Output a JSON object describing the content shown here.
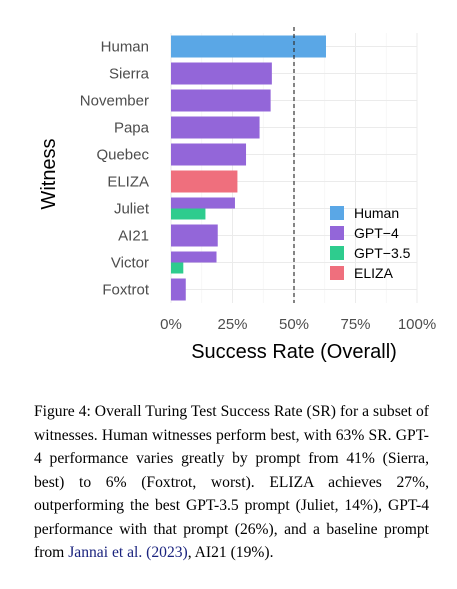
{
  "chart_data": {
    "type": "bar",
    "orientation": "horizontal",
    "xlabel": "Success Rate (Overall)",
    "ylabel": "Witness",
    "xlim": [
      0,
      1
    ],
    "xticks": [
      0,
      0.25,
      0.5,
      0.75,
      1.0
    ],
    "xtick_labels": [
      "0%",
      "25%",
      "50%",
      "75%",
      "100%"
    ],
    "reference_line": 0.5,
    "grid": true,
    "legend_position": "bottom-right",
    "categories": [
      "Human",
      "Sierra",
      "November",
      "Papa",
      "Quebec",
      "ELIZA",
      "Juliet",
      "AI21",
      "Victor",
      "Foxtrot"
    ],
    "bars": [
      {
        "witness": "Human",
        "group": "Human",
        "value": 0.63
      },
      {
        "witness": "Sierra",
        "group": "GPT-4",
        "value": 0.41
      },
      {
        "witness": "November",
        "group": "GPT-4",
        "value": 0.405
      },
      {
        "witness": "Papa",
        "group": "GPT-4",
        "value": 0.36
      },
      {
        "witness": "Quebec",
        "group": "GPT-4",
        "value": 0.305
      },
      {
        "witness": "ELIZA",
        "group": "ELIZA",
        "value": 0.27
      },
      {
        "witness": "Juliet",
        "group": "GPT-4",
        "value": 0.26
      },
      {
        "witness": "Juliet",
        "group": "GPT-3.5",
        "value": 0.14
      },
      {
        "witness": "AI21",
        "group": "GPT-4",
        "value": 0.19
      },
      {
        "witness": "Victor",
        "group": "GPT-4",
        "value": 0.185
      },
      {
        "witness": "Victor",
        "group": "GPT-3.5",
        "value": 0.05
      },
      {
        "witness": "Foxtrot",
        "group": "GPT-4",
        "value": 0.06
      }
    ],
    "legend": [
      {
        "name": "Human",
        "color": "#5aa7e6"
      },
      {
        "name": "GPT−4",
        "color": "#9366d9"
      },
      {
        "name": "GPT−3.5",
        "color": "#2ecc8e"
      },
      {
        "name": "ELIZA",
        "color": "#ef6f7d"
      }
    ]
  },
  "colors": {
    "Human": "#5aa7e6",
    "GPT-4": "#9366d9",
    "GPT-3.5": "#2ecc8e",
    "ELIZA": "#ef6f7d"
  },
  "caption": {
    "text_before_link": "Figure 4: Overall Turing Test Success Rate (SR) for a subset of witnesses. Human witnesses perform best, with 63% SR. GPT-4 performance varies greatly by prompt from 41% (Sierra, best) to 6% (Foxtrot, worst). ELIZA achieves 27%, outperforming the best GPT-3.5 prompt (Juliet, 14%), GPT-4 performance with that prompt (26%), and a baseline prompt from ",
    "link_text": "Jannai et al. (2023)",
    "text_after_link": ", AI21 (19%)."
  }
}
